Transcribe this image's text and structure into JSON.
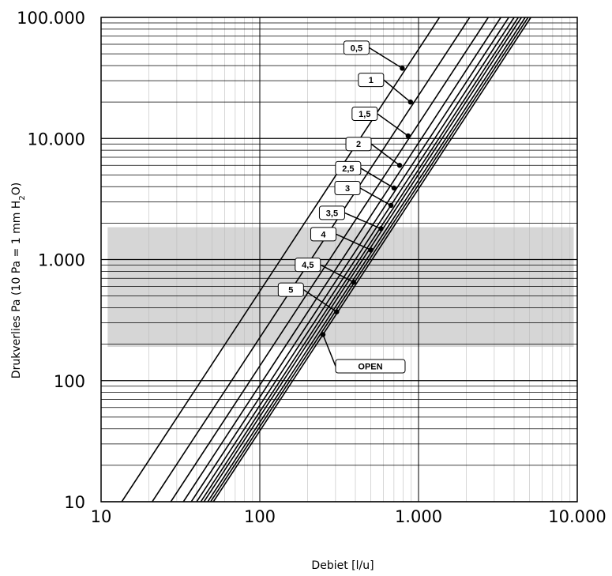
{
  "chart_data": {
    "type": "line",
    "xscale": "log",
    "yscale": "log",
    "xlim": [
      10,
      10000
    ],
    "ylim": [
      10,
      100000
    ],
    "x_ticks": [
      {
        "value": 10,
        "label": "10"
      },
      {
        "value": 100,
        "label": "100"
      },
      {
        "value": 1000,
        "label": "1.000"
      },
      {
        "value": 10000,
        "label": "10.000"
      }
    ],
    "y_ticks": [
      {
        "value": 10,
        "label": "10"
      },
      {
        "value": 100,
        "label": "100"
      },
      {
        "value": 1000,
        "label": "1.000"
      },
      {
        "value": 10000,
        "label": "10.000"
      },
      {
        "value": 100000,
        "label": "100.000"
      }
    ],
    "xlabel": "Debiet [l/u]",
    "ylabel": {
      "pre": "Drukverlies Pa (10 Pa = 1 mm H",
      "sub": "2",
      "post": "O)"
    },
    "grid": true,
    "shaded_band": {
      "y": [
        190,
        1850
      ],
      "x": [
        11,
        9500
      ],
      "color": "#d6d6d6"
    },
    "series": [
      {
        "name": "0,5",
        "x": [
          13.5,
          4700
        ],
        "y": [
          10,
          1200000
        ],
        "marker": {
          "x": 790,
          "y": 38000
        }
      },
      {
        "name": "1",
        "x": [
          21,
          2100
        ],
        "y": [
          10,
          100000
        ],
        "marker": {
          "x": 890,
          "y": 20000
        }
      },
      {
        "name": "1,5",
        "x": [
          27.5,
          2750
        ],
        "y": [
          10,
          100000
        ],
        "marker": {
          "x": 860,
          "y": 10500
        }
      },
      {
        "name": "2",
        "x": [
          33,
          3300
        ],
        "y": [
          10,
          100000
        ],
        "marker": {
          "x": 760,
          "y": 6000
        }
      },
      {
        "name": "2,5",
        "x": [
          37,
          3700
        ],
        "y": [
          10,
          100000
        ],
        "marker": {
          "x": 700,
          "y": 3900
        }
      },
      {
        "name": "3",
        "x": [
          40,
          4000
        ],
        "y": [
          10,
          100000
        ],
        "marker": {
          "x": 670,
          "y": 2800
        }
      },
      {
        "name": "3,5",
        "x": [
          42.5,
          4250
        ],
        "y": [
          10,
          100000
        ],
        "marker": {
          "x": 580,
          "y": 1800
        }
      },
      {
        "name": "4",
        "x": [
          44.5,
          4450
        ],
        "y": [
          10,
          100000
        ],
        "marker": {
          "x": 500,
          "y": 1200
        }
      },
      {
        "name": "4,5",
        "x": [
          47,
          4700
        ],
        "y": [
          10,
          100000
        ],
        "marker": {
          "x": 390,
          "y": 650
        }
      },
      {
        "name": "5",
        "x": [
          49,
          4900
        ],
        "y": [
          10,
          100000
        ],
        "marker": {
          "x": 305,
          "y": 370
        }
      },
      {
        "name": "OPEN",
        "x": [
          51,
          5100
        ],
        "y": [
          10,
          100000
        ],
        "marker": {
          "x": 250,
          "y": 240
        }
      }
    ],
    "colors": {
      "line": "#000000",
      "grid_major": "#000000",
      "grid_minor": "#bdbdbd",
      "band": "#d6d6d6"
    }
  }
}
